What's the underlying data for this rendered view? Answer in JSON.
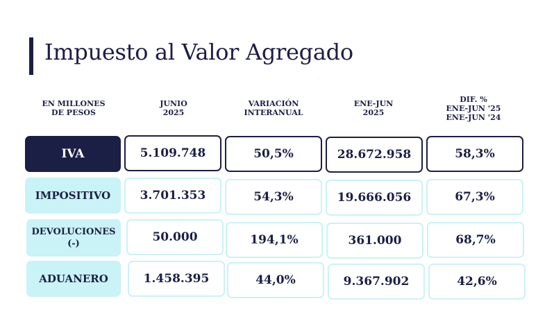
{
  "title": "Impuesto al Valor Agregado",
  "headers": {
    "label": "EN MILLONES\nDE PESOS",
    "junio": "JUNIO\n2025",
    "variacion": "VARIACIÓN\nINTERANUAL",
    "enejun": "ENE-JUN\n2025",
    "dif": "DIF. %\nENE-JUN '25\nENE-JUN '24"
  },
  "rows": [
    {
      "label": "IVA",
      "junio": "5.109.748",
      "variacion": "50,5%",
      "enejun": "28.672.958",
      "dif": "58,3%"
    },
    {
      "label": "IMPOSITIVO",
      "junio": "3.701.353",
      "variacion": "54,3%",
      "enejun": "19.666.056",
      "dif": "67,3%"
    },
    {
      "label": "DEVOLUCIONES\n(-)",
      "junio": "50.000",
      "variacion": "194,1%",
      "enejun": "361.000",
      "dif": "68,7%"
    },
    {
      "label": "ADUANERO",
      "junio": "1.458.395",
      "variacion": "44,0%",
      "enejun": "9.367.902",
      "dif": "42,6%"
    }
  ],
  "colors": {
    "dark": "#1b1f45",
    "light": "#c9f3f7"
  }
}
